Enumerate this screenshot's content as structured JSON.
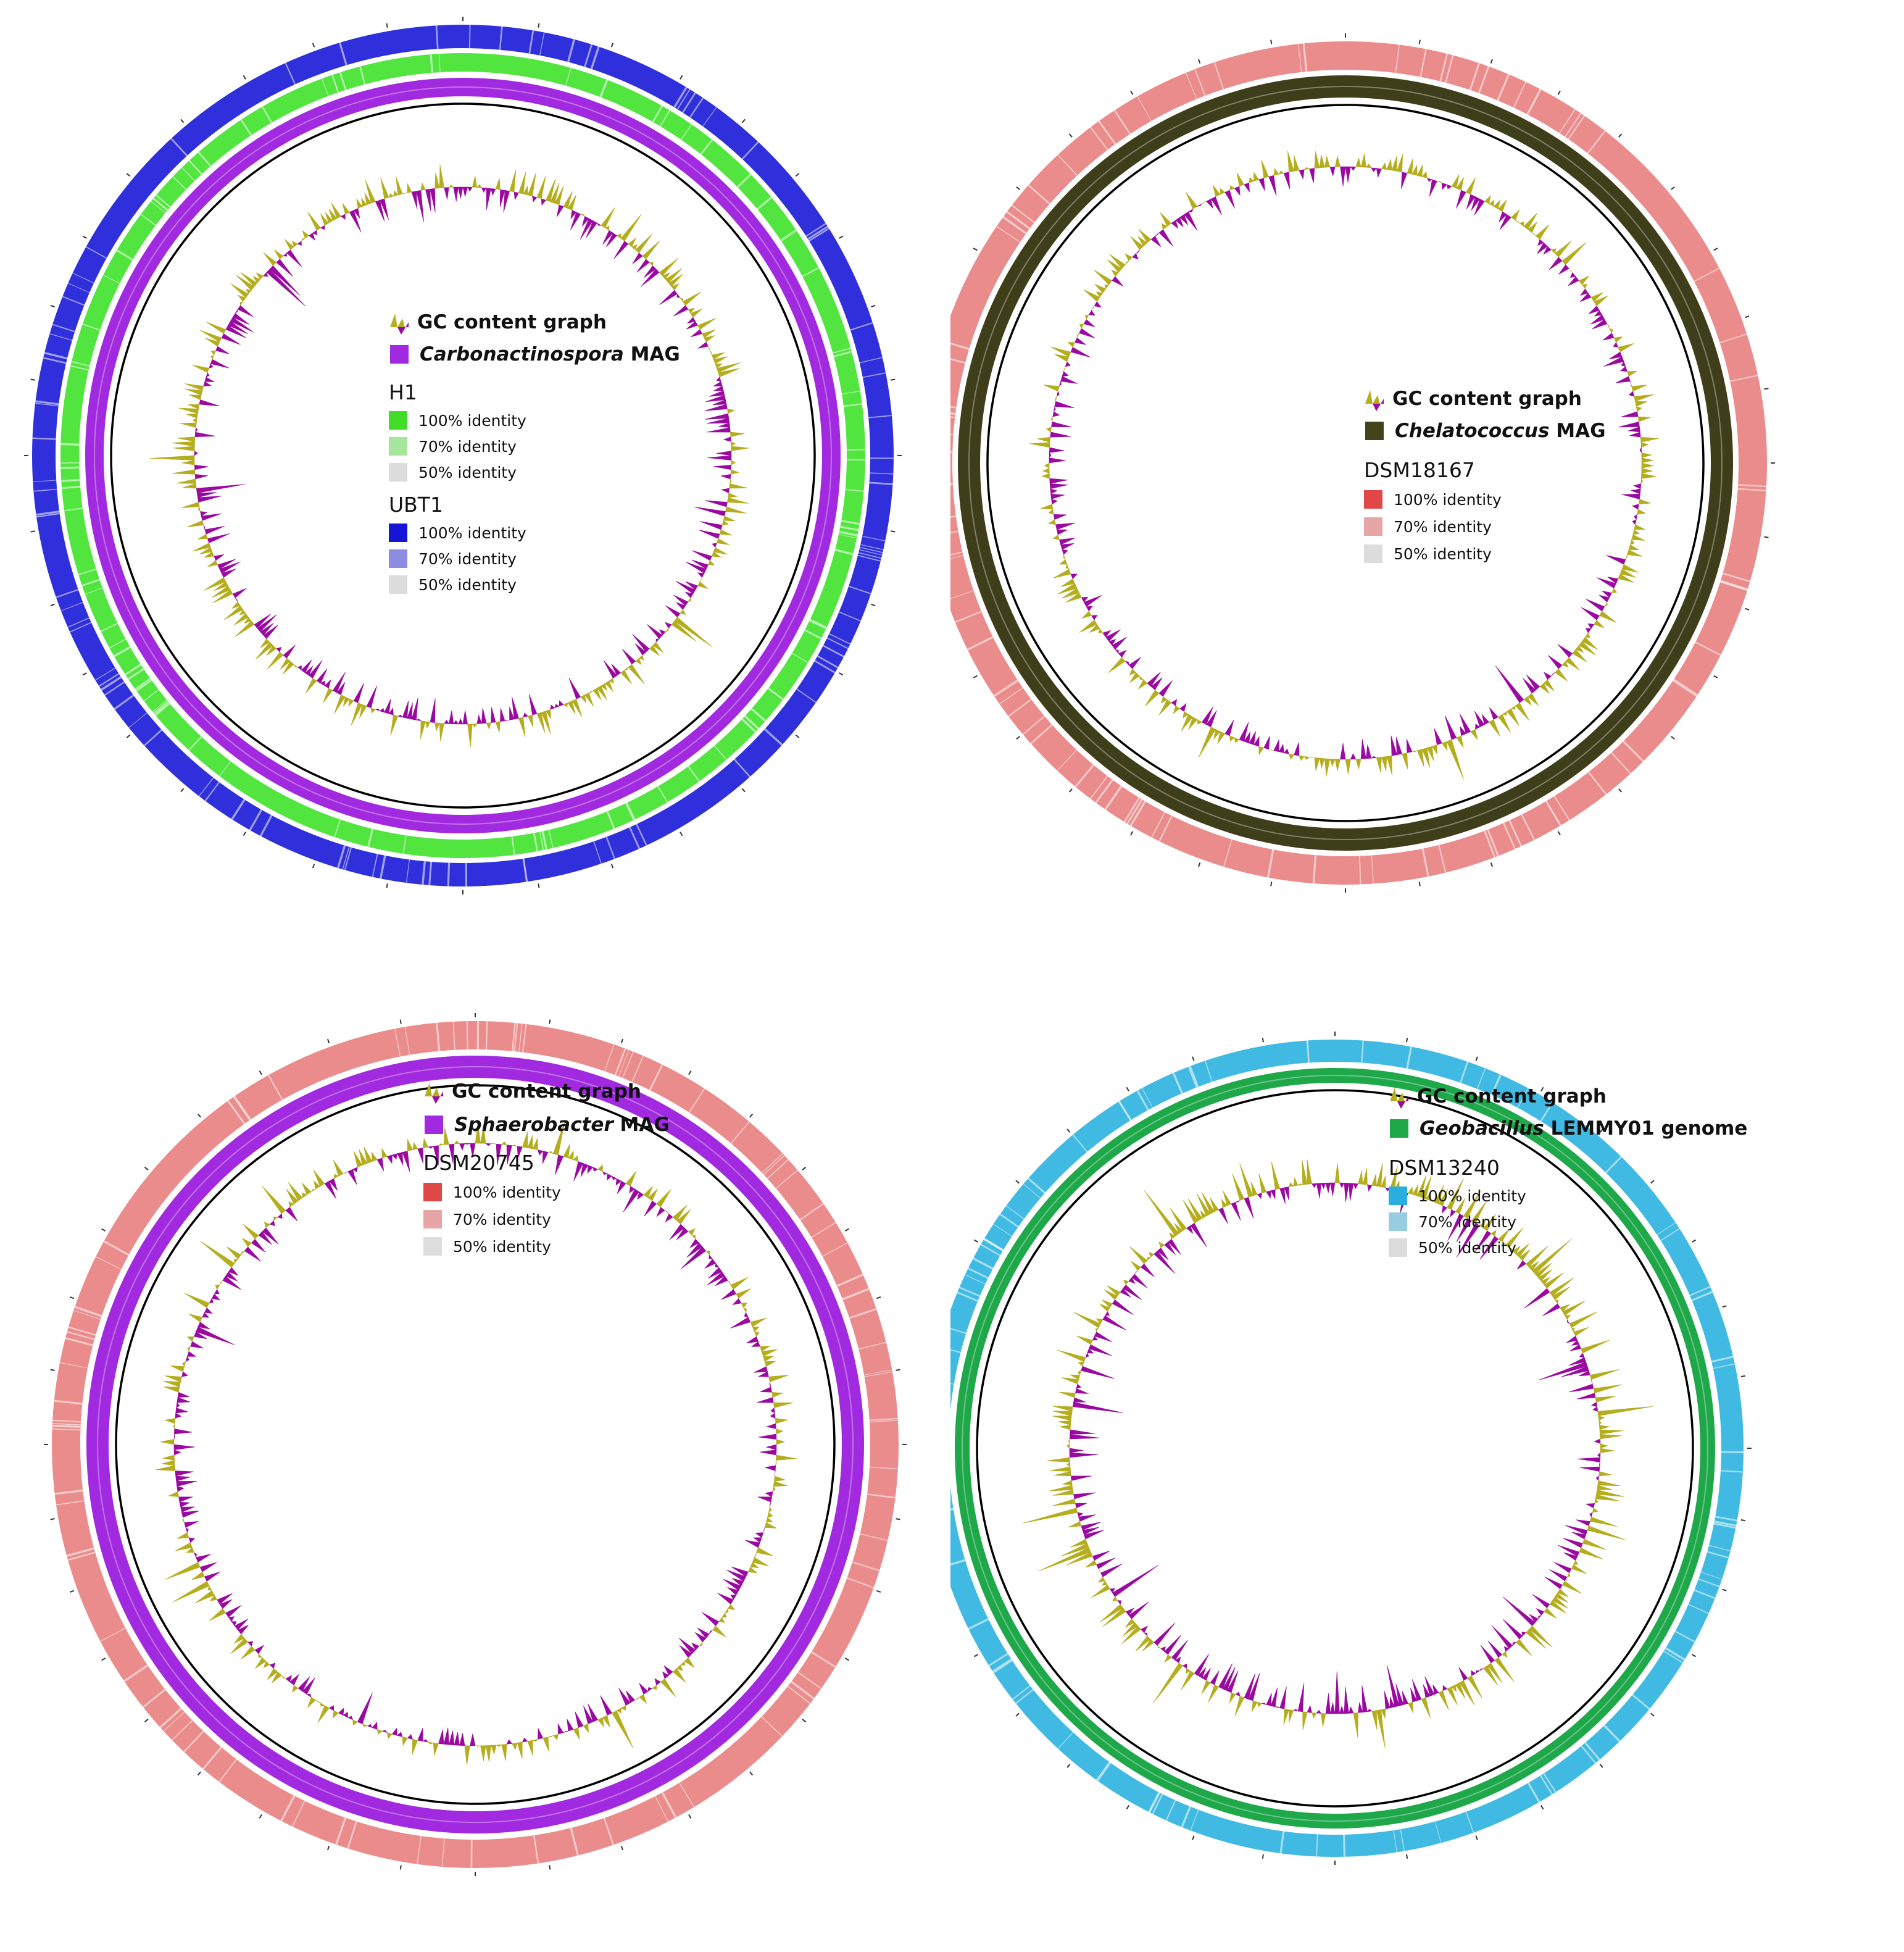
{
  "panels": [
    {
      "id": "carbonactinospora",
      "colors": {
        "mag": "#a12ae0",
        "refs": [
          "#3fe22a",
          "#1818d8"
        ],
        "gc_pos": "#b4ae1e",
        "gc_neg": "#9a0aa0"
      },
      "legend": {
        "gc_label": "GC content graph",
        "mag": {
          "organism": "Carbonactinospora",
          "suffix": " MAG",
          "color": "#a12ae0"
        },
        "references": [
          {
            "name": "H1",
            "levels": [
              {
                "label": "100% identity",
                "color": "#41dd28"
              },
              {
                "label": "70% identity",
                "color": "#a6e69a"
              },
              {
                "label": "50% identity",
                "color": "#dcdcdc"
              }
            ]
          },
          {
            "name": "UBT1",
            "levels": [
              {
                "label": "100% identity",
                "color": "#1515d6"
              },
              {
                "label": "70% identity",
                "color": "#8c8ce0"
              },
              {
                "label": "50% identity",
                "color": "#dcdcdc"
              }
            ]
          }
        ]
      }
    },
    {
      "id": "chelatococcus",
      "colors": {
        "mag": "#3e3e1a",
        "refs": [
          "#e88080"
        ],
        "gc_pos": "#b4ae1e",
        "gc_neg": "#9a0aa0"
      },
      "legend": {
        "gc_label": "GC content graph",
        "mag": {
          "organism": "Chelatococcus",
          "suffix": " MAG",
          "color": "#44441c"
        },
        "references": [
          {
            "name": "DSM18167",
            "levels": [
              {
                "label": "100% identity",
                "color": "#e04848"
              },
              {
                "label": "70% identity",
                "color": "#e6a6a6"
              },
              {
                "label": "50% identity",
                "color": "#dcdcdc"
              }
            ]
          }
        ]
      }
    },
    {
      "id": "sphaerobacter",
      "colors": {
        "mag": "#a12ae0",
        "refs": [
          "#e88080"
        ],
        "gc_pos": "#b4ae1e",
        "gc_neg": "#9a0aa0"
      },
      "legend": {
        "gc_label": "GC content graph",
        "mag": {
          "organism": "Sphaerobacter",
          "suffix": " MAG",
          "color": "#a12ae0"
        },
        "references": [
          {
            "name": "DSM20745",
            "levels": [
              {
                "label": "100% identity",
                "color": "#e04848"
              },
              {
                "label": "70% identity",
                "color": "#e6a6a6"
              },
              {
                "label": "50% identity",
                "color": "#dddddd"
              }
            ]
          }
        ]
      }
    },
    {
      "id": "geobacillus",
      "colors": {
        "mag": "#1fa84a",
        "refs": [
          "#2cb2e0"
        ],
        "gc_pos": "#b4ae1e",
        "gc_neg": "#9a0aa0"
      },
      "legend": {
        "gc_label": "GC content graph",
        "mag": {
          "organism": "Geobacillus",
          "suffix": " LEMMY01 genome",
          "color": "#1fa84a"
        },
        "references": [
          {
            "name": "DSM13240",
            "levels": [
              {
                "label": "100% identity",
                "color": "#2aaee0"
              },
              {
                "label": "70% identity",
                "color": "#98cce0"
              },
              {
                "label": "50% identity",
                "color": "#dcdcdc"
              }
            ]
          }
        ]
      }
    }
  ]
}
